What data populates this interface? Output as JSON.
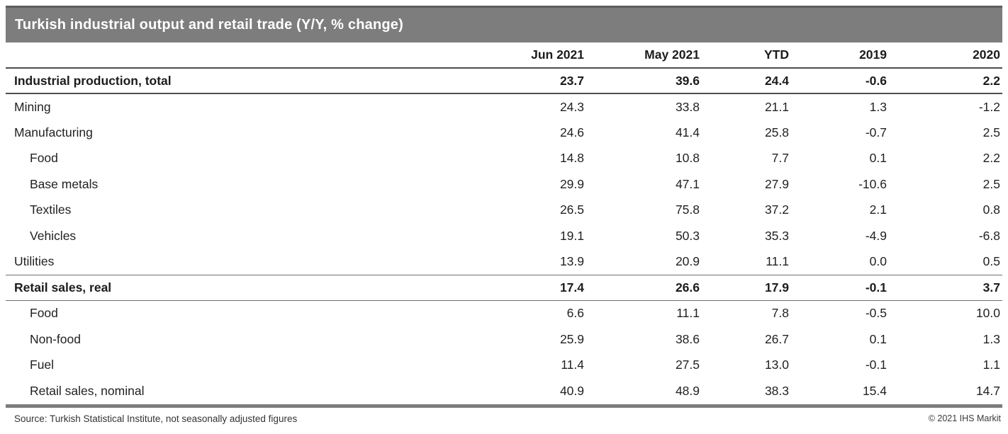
{
  "title_bar": {
    "title": "Turkish industrial output and retail trade (Y/Y, % change)"
  },
  "chart_data": {
    "type": "table",
    "title": "Turkish industrial output and retail trade (Y/Y, % change)",
    "columns": [
      "",
      "Jun 2021",
      "May 2021",
      "YTD",
      "2019",
      "2020"
    ],
    "rows": [
      {
        "label": "Industrial production, total",
        "style": "section",
        "values": [
          "23.7",
          "39.6",
          "24.4",
          "-0.6",
          "2.2"
        ]
      },
      {
        "label": "Mining",
        "style": "normal",
        "values": [
          "24.3",
          "33.8",
          "21.1",
          "1.3",
          "-1.2"
        ]
      },
      {
        "label": "Manufacturing",
        "style": "normal",
        "values": [
          "24.6",
          "41.4",
          "25.8",
          "-0.7",
          "2.5"
        ]
      },
      {
        "label": "Food",
        "style": "indent",
        "values": [
          "14.8",
          "10.8",
          "7.7",
          "0.1",
          "2.2"
        ]
      },
      {
        "label": "Base metals",
        "style": "indent",
        "values": [
          "29.9",
          "47.1",
          "27.9",
          "-10.6",
          "2.5"
        ]
      },
      {
        "label": "Textiles",
        "style": "indent",
        "values": [
          "26.5",
          "75.8",
          "37.2",
          "2.1",
          "0.8"
        ]
      },
      {
        "label": "Vehicles",
        "style": "indent",
        "values": [
          "19.1",
          "50.3",
          "35.3",
          "-4.9",
          "-6.8"
        ]
      },
      {
        "label": "Utilities",
        "style": "normal",
        "values": [
          "13.9",
          "20.9",
          "11.1",
          "0.0",
          "0.5"
        ]
      },
      {
        "label": "Retail sales, real",
        "style": "subsection",
        "values": [
          "17.4",
          "26.6",
          "17.9",
          "-0.1",
          "3.7"
        ]
      },
      {
        "label": "Food",
        "style": "indent",
        "values": [
          "6.6",
          "11.1",
          "7.8",
          "-0.5",
          "10.0"
        ]
      },
      {
        "label": "Non-food",
        "style": "indent",
        "values": [
          "25.9",
          "38.6",
          "26.7",
          "0.1",
          "1.3"
        ]
      },
      {
        "label": "Fuel",
        "style": "indent",
        "values": [
          "11.4",
          "27.5",
          "13.0",
          "-0.1",
          "1.1"
        ]
      },
      {
        "label": "Retail sales, nominal",
        "style": "indent",
        "values": [
          "40.9",
          "48.9",
          "38.3",
          "15.4",
          "14.7"
        ]
      }
    ],
    "layout": {
      "legend": "none",
      "grid": "horizontal rules on section rows only"
    }
  },
  "footer": {
    "source": "Source: Turkish Statistical Institute, not seasonally adjusted figures",
    "copyright": "© 2021 IHS Markit"
  },
  "colors": {
    "title_bar_bg": "#7d7d7d",
    "title_bar_top_border": "#5d5d5d",
    "heavy_rule": "#4f4f4f",
    "light_rule": "#6f6f6f",
    "bottom_bar": "#7d7d7d",
    "title_text": "#ffffff",
    "body_text": "#222222"
  }
}
